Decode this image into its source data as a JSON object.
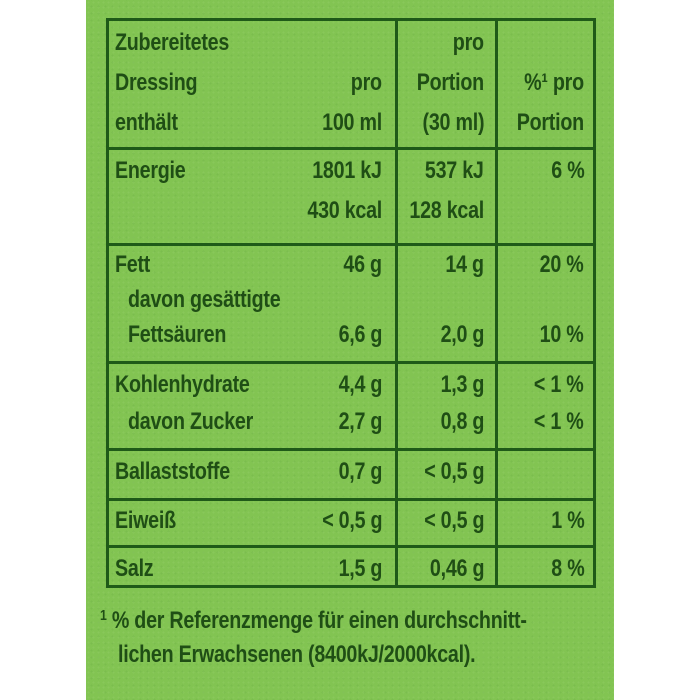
{
  "header": {
    "col1": [
      "Zubereitetes",
      "Dressing",
      "enthält"
    ],
    "col2": [
      "pro",
      "100 ml"
    ],
    "col3": [
      "pro",
      "Portion",
      "(30 ml)"
    ],
    "col4": [
      "%¹ pro",
      "Portion"
    ]
  },
  "rows": {
    "energie": {
      "label": "Energie",
      "per100_kj": "1801 kJ",
      "per100_kcal": "430 kcal",
      "portion_kj": "537 kJ",
      "portion_kcal": "128 kcal",
      "percent": "6 %"
    },
    "fett": {
      "label": "Fett",
      "per100": "46 g",
      "portion": "14 g",
      "percent": "20 %"
    },
    "gesaettigt": {
      "label1": "davon gesättigte",
      "label2": "Fettsäuren",
      "per100": "6,6 g",
      "portion": "2,0 g",
      "percent": "10 %"
    },
    "kohlenhydrate": {
      "label": "Kohlenhydrate",
      "per100": "4,4 g",
      "portion": "1,3 g",
      "percent": "< 1 %"
    },
    "zucker": {
      "label": "davon Zucker",
      "per100": "2,7 g",
      "portion": "0,8 g",
      "percent": "< 1 %"
    },
    "ballaststoffe": {
      "label": "Ballaststoffe",
      "per100": "0,7 g",
      "portion": "< 0,5 g",
      "percent": ""
    },
    "eiweiss": {
      "label": "Eiweiß",
      "per100": "< 0,5 g",
      "portion": "< 0,5 g",
      "percent": "1 %"
    },
    "salz": {
      "label": "Salz",
      "per100": "1,5 g",
      "portion": "0,46 g",
      "percent": "8 %"
    }
  },
  "footnote": {
    "marker": "1",
    "line1": "% der Referenzmenge für einen durchschnitt-",
    "line2": "lichen Erwachsenen (8400kJ/2000kcal)."
  },
  "colors": {
    "background": "#82c452",
    "ink": "#1f4e15",
    "rule": "#1f5a18"
  }
}
